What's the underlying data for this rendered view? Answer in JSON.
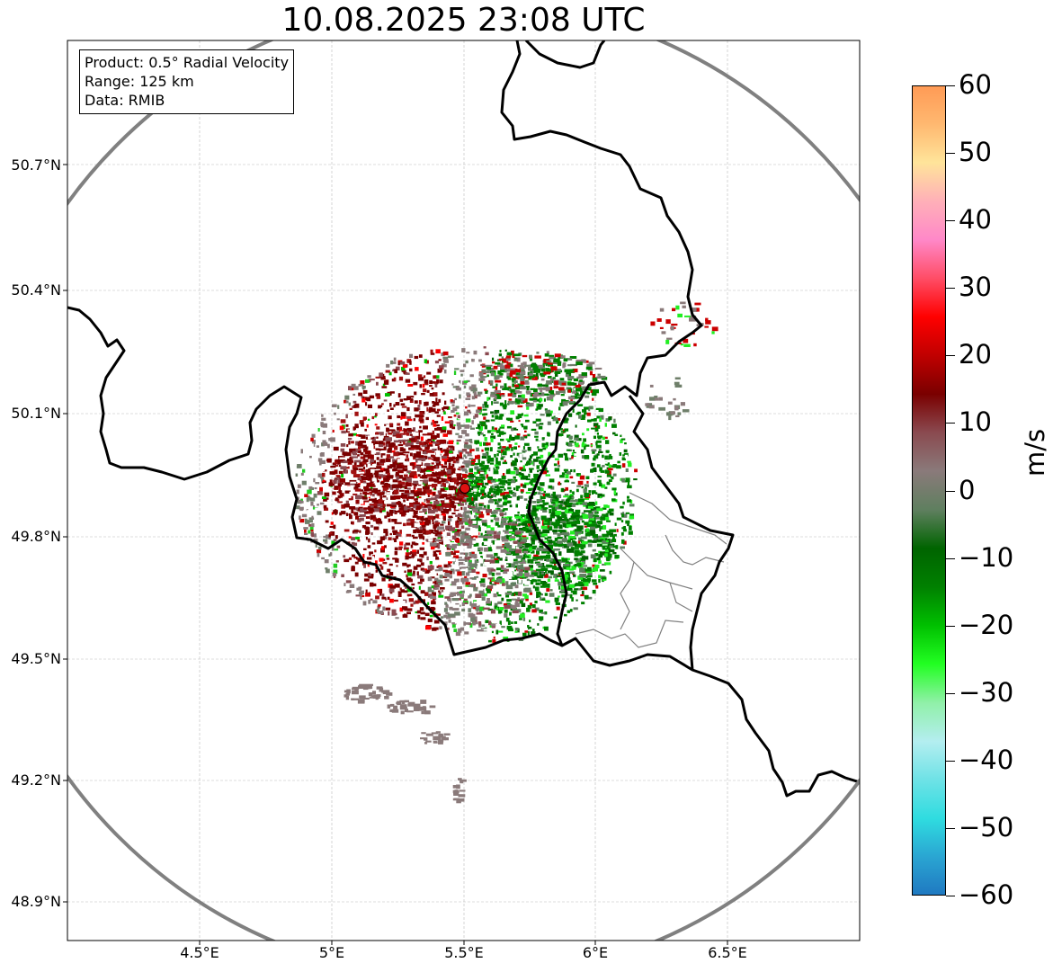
{
  "title": "10.08.2025 23:08 UTC",
  "info": {
    "product": "Product: 0.5° Radial Velocity",
    "range": "Range: 125 km",
    "data": "Data: RMIB"
  },
  "lat_labels": [
    "50.7°N",
    "50.4°N",
    "50.1°N",
    "49.8°N",
    "49.5°N",
    "49.2°N",
    "48.9°N"
  ],
  "lon_labels": [
    "4.5°E",
    "5°E",
    "5.5°E",
    "6°E",
    "6.5°E"
  ],
  "colorbar": {
    "unit": "m/s",
    "tick_labels": [
      "60",
      "50",
      "40",
      "30",
      "20",
      "10",
      "0",
      "−10",
      "−20",
      "−30",
      "−40",
      "−50",
      "−60"
    ],
    "min": -60,
    "max": 60,
    "stops": [
      "#1f78c1",
      "#2aa5d2",
      "#2fdce0",
      "#6ee2e6",
      "#b4eef0",
      "#90f0a8",
      "#22ff22",
      "#00c000",
      "#008000",
      "#006400",
      "#5f7f5f",
      "#8a7a7a",
      "#8a4a50",
      "#7a0000",
      "#c00000",
      "#ff0000",
      "#ff4d66",
      "#ff88c8",
      "#ffb0b8",
      "#ffe49a",
      "#ffb870",
      "#ff9a55"
    ]
  },
  "map": {
    "lon_range": [
      4.0,
      7.0
    ],
    "lat_range": [
      48.8,
      51.0
    ],
    "radar_site": {
      "lon": 5.505,
      "lat": 49.914
    },
    "colors": {
      "range_ring": "#808080",
      "border": "#000000",
      "region": "#808080",
      "grid": "#bbbbbb",
      "site": "#dd1111"
    }
  }
}
